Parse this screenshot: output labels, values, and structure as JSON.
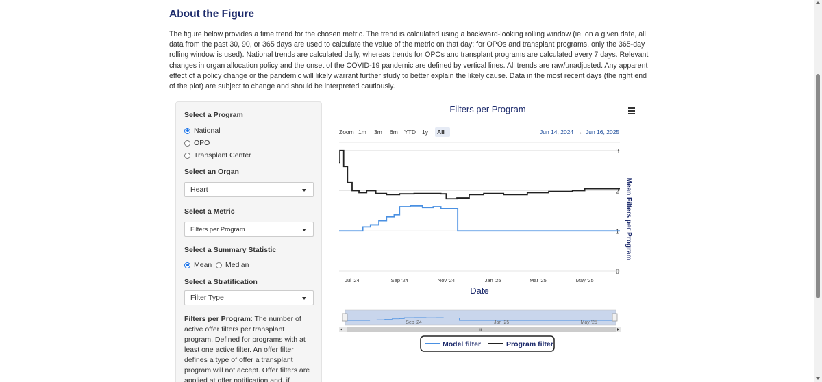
{
  "page": {
    "title": "About the Figure",
    "intro": "The figure below provides a time trend for the chosen metric. The trend is calculated using a backward-looking rolling window (ie, on a given date, all data from the past 30, 90, or 365 days are used to calculate the value of the metric on that day; for OPOs and transplant programs, only the 365-day rolling window is used). National trends are calculated daily, whereas trends for OPOs and transplant programs are calculated every 7 days. Relevant changes in organ allocation policy and the onset of the COVID-19 pandemic are defined by vertical lines. All trends are raw/unadjusted. Any apparent effect of a policy change or the pandemic will likely warrant further study to better explain the likely cause. Data in the most recent days (the right end of the plot) are subject to change and should be interpreted cautiously."
  },
  "sidebar": {
    "program_label": "Select a Program",
    "program_options": [
      "National",
      "OPO",
      "Transplant Center"
    ],
    "program_selected": "National",
    "organ_label": "Select an Organ",
    "organ_value": "Heart",
    "metric_label": "Select a Metric",
    "metric_value": "Filters per Program",
    "summary_label": "Select a Summary Statistic",
    "summary_options": [
      "Mean",
      "Median"
    ],
    "summary_selected": "Mean",
    "strat_label": "Select a Stratification",
    "strat_value": "Filter Type",
    "desc_term": "Filters per Program",
    "desc_text": ": The number of active offer filters per transplant program. Defined for programs with at least one active filter. An offer filter defines a type of offer a transplant program will not accept. Offer filters are applied at offer notification and, if applicable, bypass potential"
  },
  "chart": {
    "zoom_label": "Zoom",
    "zoom_buttons": [
      "1m",
      "3m",
      "6m",
      "YTD",
      "1y",
      "All"
    ],
    "zoom_selected": "All",
    "range_from": "Jun 14, 2024",
    "range_arrow": "→",
    "range_to": "Jun 16, 2025",
    "navigator_labels": [
      "Sep '24",
      "Jan '25",
      "May '25"
    ],
    "accent_color": "#4a90e2"
  },
  "chart_data": {
    "type": "line",
    "title": "Filters per Program",
    "xlabel": "Date",
    "ylabel": "Mean Filters per Program",
    "x_ticks": [
      "Jul '24",
      "Sep '24",
      "Nov '24",
      "Jan '25",
      "Mar '25",
      "May '25"
    ],
    "y_ticks": [
      0,
      1,
      2,
      3
    ],
    "ylim": [
      0,
      3.2
    ],
    "xlim": [
      "2024-06-14",
      "2025-06-16"
    ],
    "legend_position": "bottom",
    "series": [
      {
        "name": "Model filter",
        "color": "#4a90e2",
        "points": [
          [
            "2024-06-14",
            1.0
          ],
          [
            "2024-07-05",
            1.0
          ],
          [
            "2024-07-15",
            1.1
          ],
          [
            "2024-07-25",
            1.15
          ],
          [
            "2024-08-05",
            1.25
          ],
          [
            "2024-08-15",
            1.35
          ],
          [
            "2024-08-25",
            1.4
          ],
          [
            "2024-09-01",
            1.6
          ],
          [
            "2024-09-15",
            1.62
          ],
          [
            "2024-10-01",
            1.58
          ],
          [
            "2024-10-15",
            1.6
          ],
          [
            "2024-10-25",
            1.55
          ],
          [
            "2024-11-10",
            1.55
          ],
          [
            "2024-11-16",
            1.0
          ],
          [
            "2025-06-16",
            1.0
          ]
        ]
      },
      {
        "name": "Program filter",
        "color": "#222222",
        "points": [
          [
            "2024-06-14",
            2.7
          ],
          [
            "2024-06-15",
            3.0
          ],
          [
            "2024-06-20",
            2.6
          ],
          [
            "2024-06-25",
            2.2
          ],
          [
            "2024-07-01",
            2.0
          ],
          [
            "2024-07-10",
            1.95
          ],
          [
            "2024-07-20",
            2.0
          ],
          [
            "2024-08-01",
            1.93
          ],
          [
            "2024-08-15",
            1.9
          ],
          [
            "2024-09-01",
            1.92
          ],
          [
            "2024-09-20",
            1.93
          ],
          [
            "2024-10-10",
            1.93
          ],
          [
            "2024-10-25",
            1.92
          ],
          [
            "2024-11-01",
            1.8
          ],
          [
            "2024-11-15",
            1.82
          ],
          [
            "2024-12-01",
            1.9
          ],
          [
            "2024-12-20",
            1.93
          ],
          [
            "2025-01-15",
            1.9
          ],
          [
            "2025-02-15",
            1.95
          ],
          [
            "2025-03-15",
            1.98
          ],
          [
            "2025-04-15",
            2.0
          ],
          [
            "2025-05-01",
            2.05
          ],
          [
            "2025-06-16",
            2.05
          ]
        ]
      }
    ]
  }
}
